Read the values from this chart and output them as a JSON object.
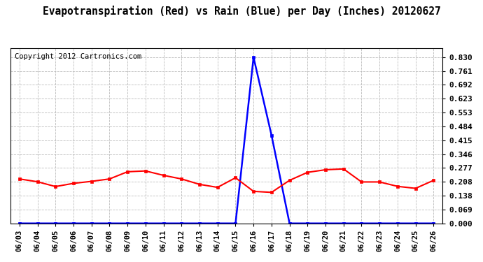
{
  "title": "Evapotranspiration (Red) vs Rain (Blue) per Day (Inches) 20120627",
  "copyright": "Copyright 2012 Cartronics.com",
  "dates": [
    "06/03",
    "06/04",
    "06/05",
    "06/06",
    "06/07",
    "06/08",
    "06/09",
    "06/10",
    "06/11",
    "06/12",
    "06/13",
    "06/14",
    "06/15",
    "06/16",
    "06/17",
    "06/18",
    "06/19",
    "06/20",
    "06/21",
    "06/22",
    "06/23",
    "06/24",
    "06/25",
    "06/26"
  ],
  "et_values": [
    0.222,
    0.208,
    0.184,
    0.2,
    0.21,
    0.222,
    0.258,
    0.262,
    0.24,
    0.222,
    0.195,
    0.18,
    0.228,
    0.16,
    0.155,
    0.215,
    0.255,
    0.268,
    0.272,
    0.207,
    0.207,
    0.185,
    0.175,
    0.215
  ],
  "rain_values": [
    0.0,
    0.0,
    0.0,
    0.0,
    0.0,
    0.0,
    0.0,
    0.0,
    0.0,
    0.0,
    0.0,
    0.0,
    0.0,
    0.83,
    0.44,
    0.0,
    0.0,
    0.0,
    0.0,
    0.0,
    0.0,
    0.0,
    0.0,
    0.0
  ],
  "et_color": "red",
  "rain_color": "blue",
  "bg_color": "white",
  "grid_color": "#bbbbbb",
  "yticks": [
    0.0,
    0.069,
    0.138,
    0.208,
    0.277,
    0.346,
    0.415,
    0.484,
    0.553,
    0.623,
    0.692,
    0.761,
    0.83
  ],
  "ylim": [
    0.0,
    0.877
  ],
  "title_fontsize": 10.5,
  "copyright_fontsize": 7.5
}
